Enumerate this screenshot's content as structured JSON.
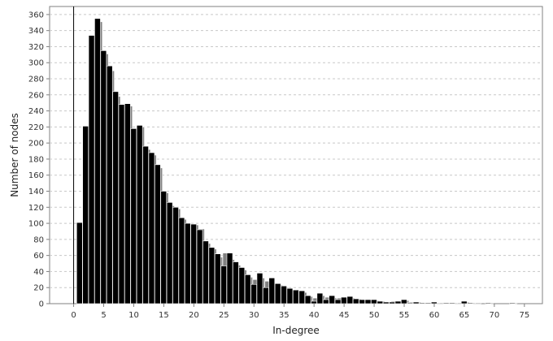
{
  "chart_data": {
    "type": "bar",
    "xlabel": "In-degree",
    "ylabel": "Number of nodes",
    "xlim": [
      -4,
      78
    ],
    "ylim": [
      0,
      370
    ],
    "grid": true,
    "xticks": [
      0,
      5,
      10,
      15,
      20,
      25,
      30,
      35,
      40,
      45,
      50,
      55,
      60,
      65,
      70,
      75
    ],
    "yticks": [
      0,
      20,
      40,
      60,
      80,
      100,
      120,
      140,
      160,
      180,
      200,
      220,
      240,
      260,
      280,
      300,
      320,
      340,
      360
    ],
    "colors": {
      "front": "#000000",
      "back": "#808080",
      "bar_edge": "#ffffff",
      "grid": "#c8c8c8",
      "frame": "#808080"
    },
    "series": [
      {
        "role": "back",
        "x": [
          1,
          2,
          3,
          4,
          5,
          6,
          7,
          8,
          9,
          10,
          11,
          12,
          13,
          14,
          15,
          16,
          17,
          18,
          19,
          20,
          21,
          22,
          23,
          24,
          25,
          26,
          27,
          28,
          29,
          30,
          31,
          32,
          33,
          34,
          35,
          36,
          37,
          38,
          39,
          40,
          41,
          42,
          43,
          44,
          45,
          46,
          47,
          48,
          49,
          50,
          51,
          52,
          53,
          54,
          55,
          56,
          57,
          58,
          59,
          60,
          61,
          62,
          63,
          64,
          65,
          66,
          67,
          68,
          69,
          70,
          71,
          72,
          73,
          74
        ],
        "values": [
          101,
          221,
          334,
          351,
          311,
          290,
          258,
          240,
          246,
          214,
          220,
          192,
          185,
          169,
          138,
          122,
          118,
          105,
          98,
          98,
          93,
          75,
          68,
          58,
          63,
          55,
          48,
          42,
          33,
          30,
          32,
          28,
          25,
          23,
          20,
          17,
          15,
          14,
          9,
          7,
          10,
          8,
          7,
          7,
          8,
          7,
          6,
          5,
          5,
          4,
          3,
          2,
          3,
          3,
          4,
          2,
          2,
          1,
          1,
          1,
          1,
          1,
          1,
          1,
          2,
          1,
          1,
          0,
          1,
          0,
          0,
          0,
          1,
          0
        ]
      },
      {
        "role": "front",
        "x": [
          1,
          2,
          3,
          4,
          5,
          6,
          7,
          8,
          9,
          10,
          11,
          12,
          13,
          14,
          15,
          16,
          17,
          18,
          19,
          20,
          21,
          22,
          23,
          24,
          25,
          26,
          27,
          28,
          29,
          30,
          31,
          32,
          33,
          34,
          35,
          36,
          37,
          38,
          39,
          40,
          41,
          42,
          43,
          44,
          45,
          46,
          47,
          48,
          49,
          50,
          51,
          52,
          53,
          54,
          55,
          56,
          57,
          58,
          59,
          60,
          61,
          62,
          63,
          64,
          65,
          66,
          67,
          68,
          69,
          70,
          71,
          72,
          73,
          74
        ],
        "values": [
          101,
          221,
          334,
          355,
          315,
          296,
          264,
          248,
          249,
          218,
          222,
          196,
          188,
          173,
          140,
          126,
          120,
          107,
          100,
          99,
          92,
          78,
          70,
          62,
          47,
          63,
          52,
          45,
          36,
          24,
          38,
          20,
          32,
          25,
          22,
          19,
          17,
          16,
          10,
          3,
          13,
          5,
          10,
          5,
          8,
          9,
          6,
          5,
          5,
          5,
          3,
          2,
          2,
          3,
          5,
          1,
          2,
          1,
          1,
          2,
          0,
          1,
          1,
          0,
          3,
          1,
          0,
          0,
          1,
          0,
          0,
          0,
          1,
          0
        ]
      }
    ]
  }
}
